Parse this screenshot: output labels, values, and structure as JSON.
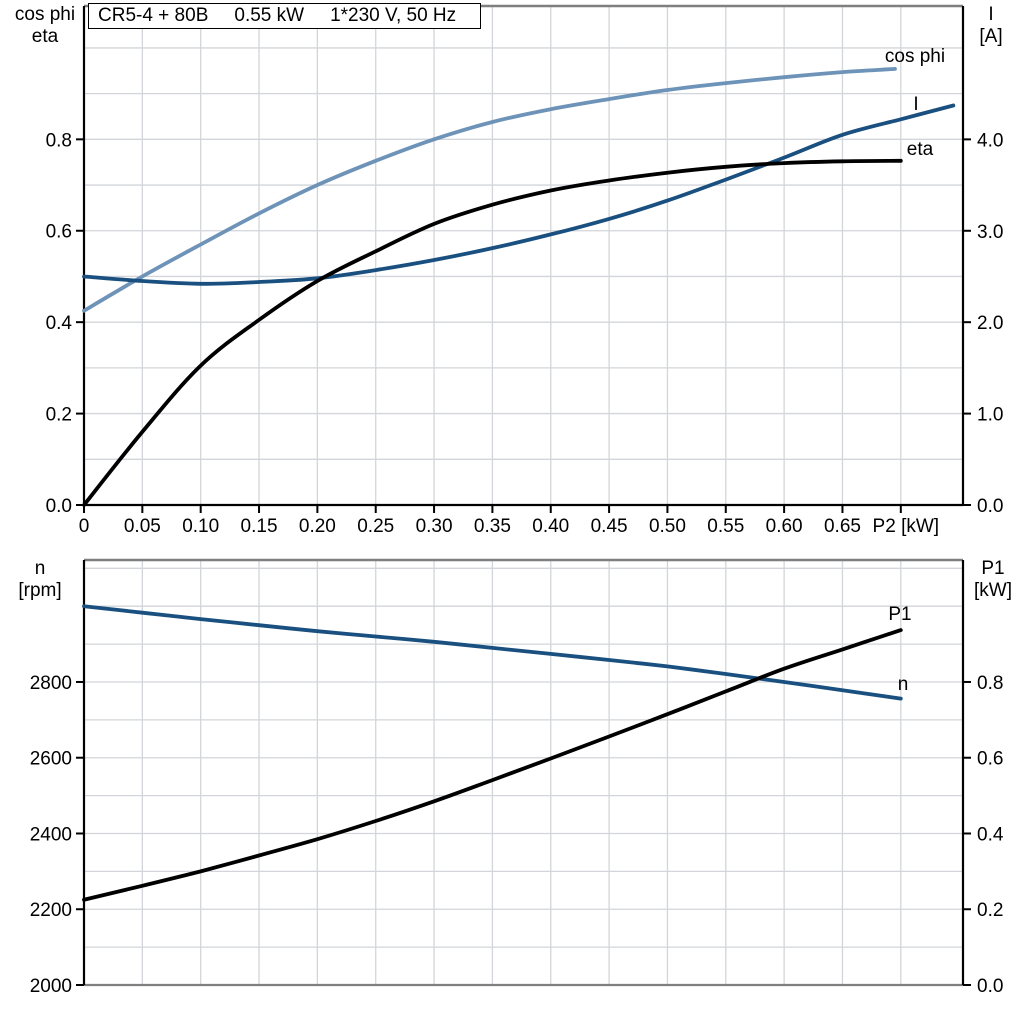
{
  "title_box": {
    "model": "CR5-4 + 80B",
    "power": "0.55 kW",
    "supply": "1*230 V, 50 Hz"
  },
  "colors": {
    "dark_blue": "#1A5080",
    "light_blue": "#6E93B8",
    "black": "#000000",
    "grid": "#D2D5D9",
    "frame_gray": "#7F7F7F"
  },
  "chart_data": [
    {
      "id": "motor-electrical-curves",
      "type": "line",
      "grid": true,
      "title": "CR5-4 + 80B 0.55 kW 1*230 V, 50 Hz",
      "x_axis": {
        "label": "P2 [kW]",
        "tick_labels": [
          "0",
          "0.05",
          "0.10",
          "0.15",
          "0.20",
          "0.25",
          "0.30",
          "0.35",
          "0.40",
          "0.45",
          "0.50",
          "0.55",
          "0.60",
          "0.65"
        ],
        "tick_values": [
          0,
          0.05,
          0.1,
          0.15,
          0.2,
          0.25,
          0.3,
          0.35,
          0.4,
          0.45,
          0.5,
          0.55,
          0.6,
          0.65
        ],
        "label_tick_value": 0.7,
        "minor_step": 0.05,
        "lim": [
          0,
          0.7533
        ]
      },
      "left_axis": {
        "title_lines": [
          "cos phi",
          "eta"
        ],
        "tick_labels": [
          "0.0",
          "0.2",
          "0.4",
          "0.6",
          "0.8"
        ],
        "tick_values": [
          0,
          0.2,
          0.4,
          0.6,
          0.8
        ],
        "grid_step": 0.1,
        "lim": [
          0,
          1.0917
        ]
      },
      "right_axis": {
        "title_lines": [
          "I",
          "[A]"
        ],
        "tick_labels": [
          "0.0",
          "1.0",
          "2.0",
          "3.0",
          "4.0"
        ],
        "tick_values": [
          0,
          1,
          2,
          3,
          4
        ],
        "lim": [
          0,
          5.459
        ]
      },
      "series": [
        {
          "name": "cos phi",
          "axis": "left",
          "color_key": "light_blue",
          "x": [
            0,
            0.05,
            0.1,
            0.15,
            0.2,
            0.25,
            0.3,
            0.35,
            0.4,
            0.45,
            0.5,
            0.55,
            0.6,
            0.65,
            0.695
          ],
          "y": [
            0.425,
            0.5,
            0.57,
            0.638,
            0.7,
            0.753,
            0.8,
            0.838,
            0.866,
            0.888,
            0.908,
            0.923,
            0.936,
            0.947,
            0.954
          ]
        },
        {
          "name": "I",
          "axis": "right",
          "color_key": "dark_blue",
          "x": [
            0,
            0.05,
            0.1,
            0.15,
            0.2,
            0.25,
            0.3,
            0.35,
            0.4,
            0.45,
            0.5,
            0.55,
            0.6,
            0.65,
            0.7,
            0.745
          ],
          "y": [
            2.5,
            2.45,
            2.42,
            2.44,
            2.48,
            2.57,
            2.68,
            2.81,
            2.96,
            3.13,
            3.33,
            3.56,
            3.8,
            4.05,
            4.22,
            4.37
          ]
        },
        {
          "name": "eta",
          "axis": "left",
          "color_key": "black",
          "x": [
            0,
            0.05,
            0.1,
            0.15,
            0.2,
            0.25,
            0.3,
            0.35,
            0.4,
            0.45,
            0.5,
            0.55,
            0.6,
            0.65,
            0.7
          ],
          "y": [
            0.0,
            0.16,
            0.305,
            0.405,
            0.49,
            0.555,
            0.615,
            0.657,
            0.688,
            0.71,
            0.727,
            0.74,
            0.748,
            0.752,
            0.753
          ]
        }
      ]
    },
    {
      "id": "speed-and-input-power-curves",
      "type": "line",
      "grid": true,
      "x_axis": {
        "label": "",
        "tick_labels": [],
        "tick_values": [],
        "minor_step": 0.05,
        "lim": [
          0,
          0.7533
        ]
      },
      "left_axis": {
        "title_lines": [
          "n",
          "[rpm]"
        ],
        "tick_labels": [
          "2000",
          "2200",
          "2400",
          "2600",
          "2800"
        ],
        "tick_values": [
          2000,
          2200,
          2400,
          2600,
          2800
        ],
        "grid_step": 100,
        "lim": [
          2000,
          3122
        ]
      },
      "right_axis": {
        "title_lines": [
          "P1",
          "[kW]"
        ],
        "tick_labels": [
          "0.0",
          "0.2",
          "0.4",
          "0.6",
          "0.8"
        ],
        "tick_values": [
          0,
          0.2,
          0.4,
          0.6,
          0.8
        ],
        "lim": [
          0,
          1.122
        ]
      },
      "series": [
        {
          "name": "n",
          "axis": "left",
          "color_key": "dark_blue",
          "x": [
            0,
            0.05,
            0.1,
            0.15,
            0.2,
            0.25,
            0.3,
            0.35,
            0.4,
            0.45,
            0.5,
            0.55,
            0.6,
            0.65,
            0.7
          ],
          "y": [
            3000,
            2983,
            2966,
            2950,
            2934,
            2920,
            2906,
            2890,
            2874,
            2858,
            2841,
            2821,
            2800,
            2778,
            2756
          ]
        },
        {
          "name": "P1",
          "axis": "right",
          "color_key": "black",
          "x": [
            0,
            0.05,
            0.1,
            0.15,
            0.2,
            0.25,
            0.3,
            0.35,
            0.4,
            0.45,
            0.5,
            0.55,
            0.6,
            0.65,
            0.7
          ],
          "y": [
            0.225,
            0.262,
            0.3,
            0.342,
            0.385,
            0.433,
            0.485,
            0.541,
            0.598,
            0.656,
            0.715,
            0.775,
            0.835,
            0.886,
            0.937
          ]
        }
      ]
    }
  ]
}
